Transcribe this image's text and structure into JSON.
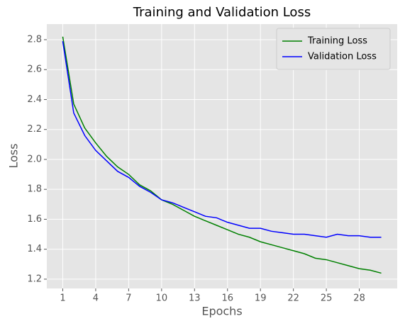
{
  "chart_data": {
    "type": "line",
    "title": "Training and Validation Loss",
    "xlabel": "Epochs",
    "ylabel": "Loss",
    "x": [
      1,
      2,
      3,
      4,
      5,
      6,
      7,
      8,
      9,
      10,
      11,
      12,
      13,
      14,
      15,
      16,
      17,
      18,
      19,
      20,
      21,
      22,
      23,
      24,
      25,
      26,
      27,
      28,
      29,
      30
    ],
    "series": [
      {
        "name": "Training Loss",
        "color": "#008000",
        "values": [
          2.82,
          2.37,
          2.21,
          2.11,
          2.02,
          1.95,
          1.9,
          1.83,
          1.79,
          1.73,
          1.7,
          1.66,
          1.62,
          1.59,
          1.56,
          1.53,
          1.5,
          1.48,
          1.45,
          1.43,
          1.41,
          1.39,
          1.37,
          1.34,
          1.33,
          1.31,
          1.29,
          1.27,
          1.26,
          1.24
        ]
      },
      {
        "name": "Validation Loss",
        "color": "#0000ff",
        "values": [
          2.79,
          2.31,
          2.16,
          2.06,
          1.99,
          1.92,
          1.88,
          1.82,
          1.78,
          1.73,
          1.71,
          1.68,
          1.65,
          1.62,
          1.61,
          1.58,
          1.56,
          1.54,
          1.54,
          1.52,
          1.51,
          1.5,
          1.5,
          1.49,
          1.48,
          1.5,
          1.49,
          1.49,
          1.48,
          1.48
        ]
      }
    ],
    "xlim": [
      -0.45,
      31.45
    ],
    "xticks": [
      1,
      4,
      7,
      10,
      13,
      16,
      19,
      22,
      25,
      28
    ],
    "ylim": [
      1.138,
      2.904
    ],
    "yticks": [
      1.2,
      1.4,
      1.6,
      1.8,
      {
        "value": 2,
        "label": "2.0"
      },
      2.2,
      2.4,
      2.6,
      2.8
    ],
    "grid": true,
    "legend": "upper right"
  }
}
